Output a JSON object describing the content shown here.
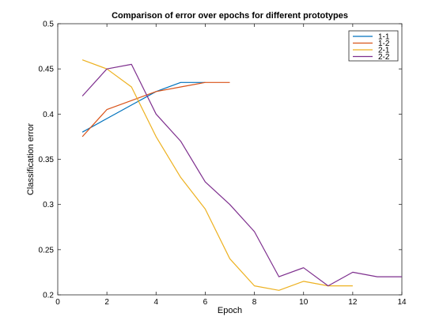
{
  "chart_data": {
    "type": "line",
    "title": "Comparison of error over epochs for different prototypes",
    "xlabel": "Epoch",
    "ylabel": "Classification error",
    "xlim": [
      0,
      14
    ],
    "ylim": [
      0.2,
      0.5
    ],
    "xticks": [
      0,
      2,
      4,
      6,
      8,
      10,
      12,
      14
    ],
    "yticks": [
      0.2,
      0.25,
      0.3,
      0.35,
      0.4,
      0.45,
      0.5
    ],
    "xtick_labels": [
      "0",
      "2",
      "4",
      "6",
      "8",
      "10",
      "12",
      "14"
    ],
    "ytick_labels": [
      "0.2",
      "0.25",
      "0.3",
      "0.35",
      "0.4",
      "0.45",
      "0.5"
    ],
    "legend_position": "top-right",
    "grid": false,
    "series": [
      {
        "name": "1-1",
        "color": "#0072BD",
        "x": [
          1,
          2,
          3,
          4,
          5,
          6
        ],
        "y": [
          0.38,
          0.395,
          0.41,
          0.425,
          0.435,
          0.435
        ]
      },
      {
        "name": "1-2",
        "color": "#D95319",
        "x": [
          1,
          2,
          3,
          4,
          5,
          6,
          7
        ],
        "y": [
          0.375,
          0.405,
          0.415,
          0.425,
          0.43,
          0.435,
          0.435
        ]
      },
      {
        "name": "2-1",
        "color": "#EDB120",
        "x": [
          1,
          2,
          3,
          4,
          5,
          6,
          7,
          8,
          9,
          10,
          11,
          12
        ],
        "y": [
          0.46,
          0.45,
          0.43,
          0.375,
          0.33,
          0.295,
          0.24,
          0.21,
          0.205,
          0.215,
          0.21,
          0.21
        ]
      },
      {
        "name": "2-2",
        "color": "#7E2F8E",
        "x": [
          1,
          2,
          3,
          4,
          5,
          6,
          7,
          8,
          9,
          10,
          11,
          12,
          13,
          14
        ],
        "y": [
          0.42,
          0.45,
          0.455,
          0.4,
          0.37,
          0.325,
          0.3,
          0.27,
          0.22,
          0.23,
          0.21,
          0.225,
          0.22,
          0.22
        ]
      }
    ]
  }
}
